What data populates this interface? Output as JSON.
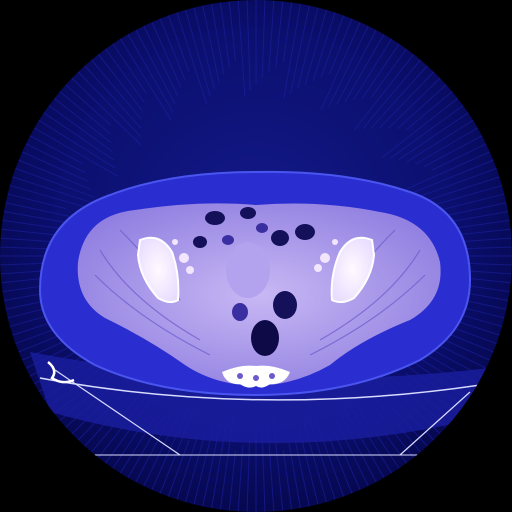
{
  "image": {
    "kind": "axial CT slice, pelvis, false-color blue/violet rendering",
    "colors": {
      "background": "#000000",
      "field_of_view": "#0b0f6e",
      "field_of_view_edge": "#060850",
      "streak": "#1e24a8",
      "fat": "#2a2ed0",
      "skin_outline": "#4a55f0",
      "muscle": "#9a88e6",
      "muscle_light": "#c8b8f4",
      "bone_cortex": "#ffffff",
      "bone_marrow": "#f2e6ff",
      "bowel_gas": "#14105a",
      "table": "#1a1ea0",
      "table_line": "#d8dcff"
    }
  }
}
